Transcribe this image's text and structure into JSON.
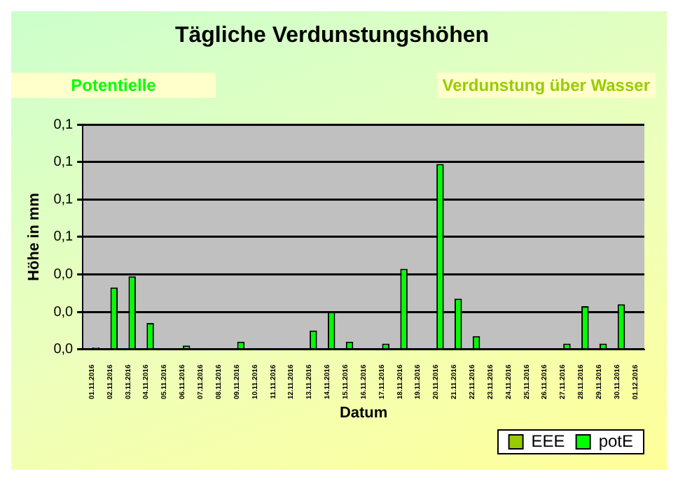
{
  "chart_data": {
    "type": "bar",
    "title": "Tägliche Verdunstungshöhen",
    "xlabel": "Datum",
    "ylabel": "Höhe in mm",
    "annotations": [
      "Potentielle",
      "Verdunstung über Wasser"
    ],
    "categories": [
      "01.11.2016",
      "02.11.2016",
      "03.11.2016",
      "04.11.2016",
      "05.11.2016",
      "06.11.2016",
      "07.11.2016",
      "08.11.2016",
      "09.11.2016",
      "10.11.2016",
      "11.11.2016",
      "12.11.2016",
      "13.11.2016",
      "14.11.2016",
      "15.11.2016",
      "16.11.2016",
      "17.11.2016",
      "18.11.2016",
      "19.11.2016",
      "20.11.2016",
      "21.11.2016",
      "22.11.2016",
      "23.11.2016",
      "24.11.2016",
      "25.11.2016",
      "26.11.2016",
      "27.11.2016",
      "28.11.2016",
      "29.11.2016",
      "30.11.2016",
      "01.12.2016"
    ],
    "series": [
      {
        "name": "EEE",
        "color": "#99cc00",
        "values": [
          null,
          null,
          null,
          null,
          null,
          null,
          null,
          null,
          null,
          null,
          null,
          null,
          null,
          null,
          null,
          null,
          null,
          null,
          null,
          null,
          null,
          null,
          null,
          null,
          null,
          null,
          null,
          null,
          null,
          null,
          null
        ]
      },
      {
        "name": "potE",
        "color": "#00ff00",
        "values": [
          0.001,
          0.033,
          0.039,
          0.014,
          0,
          0.002,
          0,
          0,
          0.004,
          0,
          0,
          0,
          0.01,
          0.02,
          0.004,
          0,
          0.003,
          0.043,
          0,
          0.099,
          0.027,
          0.007,
          0,
          0,
          0,
          0,
          0.003,
          0.023,
          0.003,
          0.024,
          0
        ]
      }
    ],
    "ylim": [
      0,
      0.12
    ],
    "yticks": [
      {
        "value": 0,
        "label": "0,0"
      },
      {
        "value": 0.02,
        "label": "0,0"
      },
      {
        "value": 0.04,
        "label": "0,0"
      },
      {
        "value": 0.06,
        "label": "0,1"
      },
      {
        "value": 0.08,
        "label": "0,1"
      },
      {
        "value": 0.1,
        "label": "0,1"
      },
      {
        "value": 0.12,
        "label": "0,1"
      }
    ],
    "grid": "y",
    "legend": "bottom right"
  }
}
